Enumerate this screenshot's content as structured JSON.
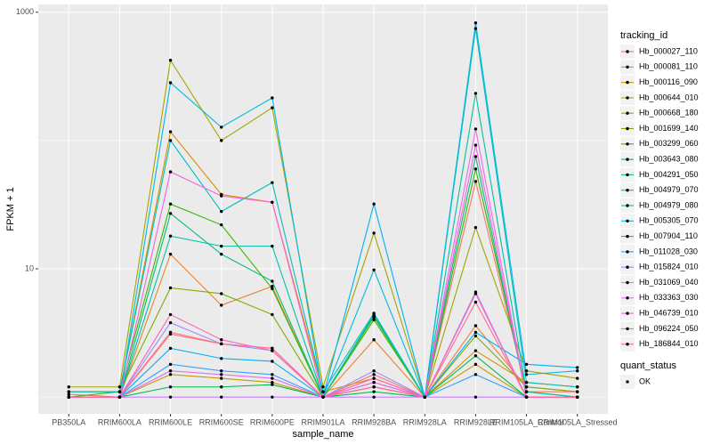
{
  "chart_data": {
    "type": "line",
    "xlabel": "sample_name",
    "ylabel": "FPKM + 1",
    "yscale": "log",
    "ylim": [
      0.74,
      1150
    ],
    "yticks": [
      10,
      1000
    ],
    "grid": true,
    "legend_title": "tracking_id",
    "legend_position": "right",
    "point_color": "#000000",
    "shape_legend": {
      "title": "quant_status",
      "labels": [
        "OK"
      ]
    },
    "categories": [
      "PB350LA",
      "RRIM600LA",
      "RRIM600LE",
      "RRIM600SE",
      "RRIM600PE",
      "RRIM901LA",
      "RRIM928BA",
      "RRIM928LA",
      "RRIM928LE",
      "RRIM105LA_Control",
      "RRIM105LA_Stressed"
    ],
    "series": [
      {
        "name": "Hb_000027_110",
        "color": "#F8766D",
        "values": [
          1.05,
          1.0,
          3.1,
          2.6,
          2.4,
          1.0,
          1.5,
          1.0,
          48,
          1.1,
          1.1
        ]
      },
      {
        "name": "Hb_000081_110",
        "color": "#EA8331",
        "values": [
          1.0,
          1.0,
          13,
          5.2,
          7.3,
          1.0,
          2.8,
          1.0,
          3.6,
          1.2,
          1.1
        ]
      },
      {
        "name": "Hb_000116_090",
        "color": "#D89000",
        "values": [
          1.1,
          1.1,
          117,
          38,
          33,
          1.1,
          1.4,
          1.0,
          2.3,
          1.3,
          1.2
        ]
      },
      {
        "name": "Hb_000644_010",
        "color": "#C09B00",
        "values": [
          1.0,
          1.0,
          1.5,
          1.4,
          1.3,
          1.0,
          1.2,
          1.0,
          1.8,
          1.0,
          1.0
        ]
      },
      {
        "name": "Hb_000668_180",
        "color": "#A3A500",
        "values": [
          1.2,
          1.2,
          422,
          100,
          180,
          1.2,
          19,
          1.0,
          21,
          1.6,
          1.4
        ]
      },
      {
        "name": "Hb_001699_140",
        "color": "#7CAE00",
        "values": [
          1.1,
          1.1,
          7.1,
          6.4,
          4.4,
          1.0,
          4.2,
          1.0,
          3.0,
          1.2,
          1.1
        ]
      },
      {
        "name": "Hb_003299_060",
        "color": "#39B600",
        "values": [
          1.0,
          1.1,
          32,
          22,
          7.0,
          1.0,
          4.0,
          1.0,
          60,
          1.1,
          1.0
        ]
      },
      {
        "name": "Hb_003643_080",
        "color": "#00BB4E",
        "values": [
          1.0,
          1.0,
          1.2,
          1.2,
          1.25,
          1.0,
          1.1,
          1.0,
          2.1,
          1.0,
          1.0
        ]
      },
      {
        "name": "Hb_004291_050",
        "color": "#00BF7D",
        "values": [
          1.0,
          1.0,
          27,
          13,
          8.0,
          1.0,
          4.3,
          1.0,
          75,
          1.0,
          1.0
        ]
      },
      {
        "name": "Hb_004979_070",
        "color": "#00C1A3",
        "values": [
          1.0,
          1.0,
          18,
          15,
          15,
          1.0,
          4.4,
          1.0,
          233,
          1.1,
          1.0
        ]
      },
      {
        "name": "Hb_004979_080",
        "color": "#00BFC4",
        "values": [
          1.1,
          1.1,
          100,
          28,
          47,
          1.1,
          4.5,
          1.0,
          745,
          1.3,
          1.2
        ]
      },
      {
        "name": "Hb_005305_070",
        "color": "#00BAE0",
        "values": [
          1.0,
          1.0,
          282,
          127,
          215,
          1.0,
          9.8,
          1.0,
          826,
          1.5,
          1.6
        ]
      },
      {
        "name": "Hb_007904_110",
        "color": "#00B0F6",
        "values": [
          1.0,
          1.0,
          2.4,
          2.0,
          1.9,
          1.0,
          32,
          1.0,
          3.2,
          1.8,
          1.7
        ]
      },
      {
        "name": "Hb_011028_030",
        "color": "#35A2FF",
        "values": [
          1.0,
          1.0,
          1.8,
          1.6,
          1.5,
          1.0,
          1.3,
          1.0,
          1.5,
          1.0,
          1.0
        ]
      },
      {
        "name": "Hb_015824_010",
        "color": "#9590FF",
        "values": [
          1.0,
          1.0,
          3.8,
          2.6,
          2.3,
          1.0,
          1.6,
          1.0,
          6.6,
          1.0,
          1.0
        ]
      },
      {
        "name": "Hb_031069_040",
        "color": "#C77CFF",
        "values": [
          1.0,
          1.0,
          1.0,
          1.0,
          1.0,
          1.0,
          1.0,
          1.0,
          1.0,
          1.0,
          1.0
        ]
      },
      {
        "name": "Hb_033363_030",
        "color": "#E76BF3",
        "values": [
          1.0,
          1.0,
          1.6,
          1.5,
          1.4,
          1.0,
          1.2,
          1.0,
          123,
          1.0,
          1.0
        ]
      },
      {
        "name": "Hb_046739_010",
        "color": "#FA62DB",
        "values": [
          1.0,
          1.0,
          57,
          37,
          33,
          1.0,
          1.3,
          1.0,
          92,
          1.0,
          1.0
        ]
      },
      {
        "name": "Hb_096224_050",
        "color": "#FF62BC",
        "values": [
          1.0,
          1.0,
          4.4,
          2.8,
          2.3,
          1.0,
          1.4,
          1.0,
          6.4,
          1.0,
          1.0
        ]
      },
      {
        "name": "Hb_186844_010",
        "color": "#FF6C91",
        "values": [
          1.0,
          1.0,
          3.2,
          2.6,
          2.4,
          1.0,
          1.2,
          1.0,
          5.5,
          1.0,
          1.0
        ]
      }
    ]
  }
}
